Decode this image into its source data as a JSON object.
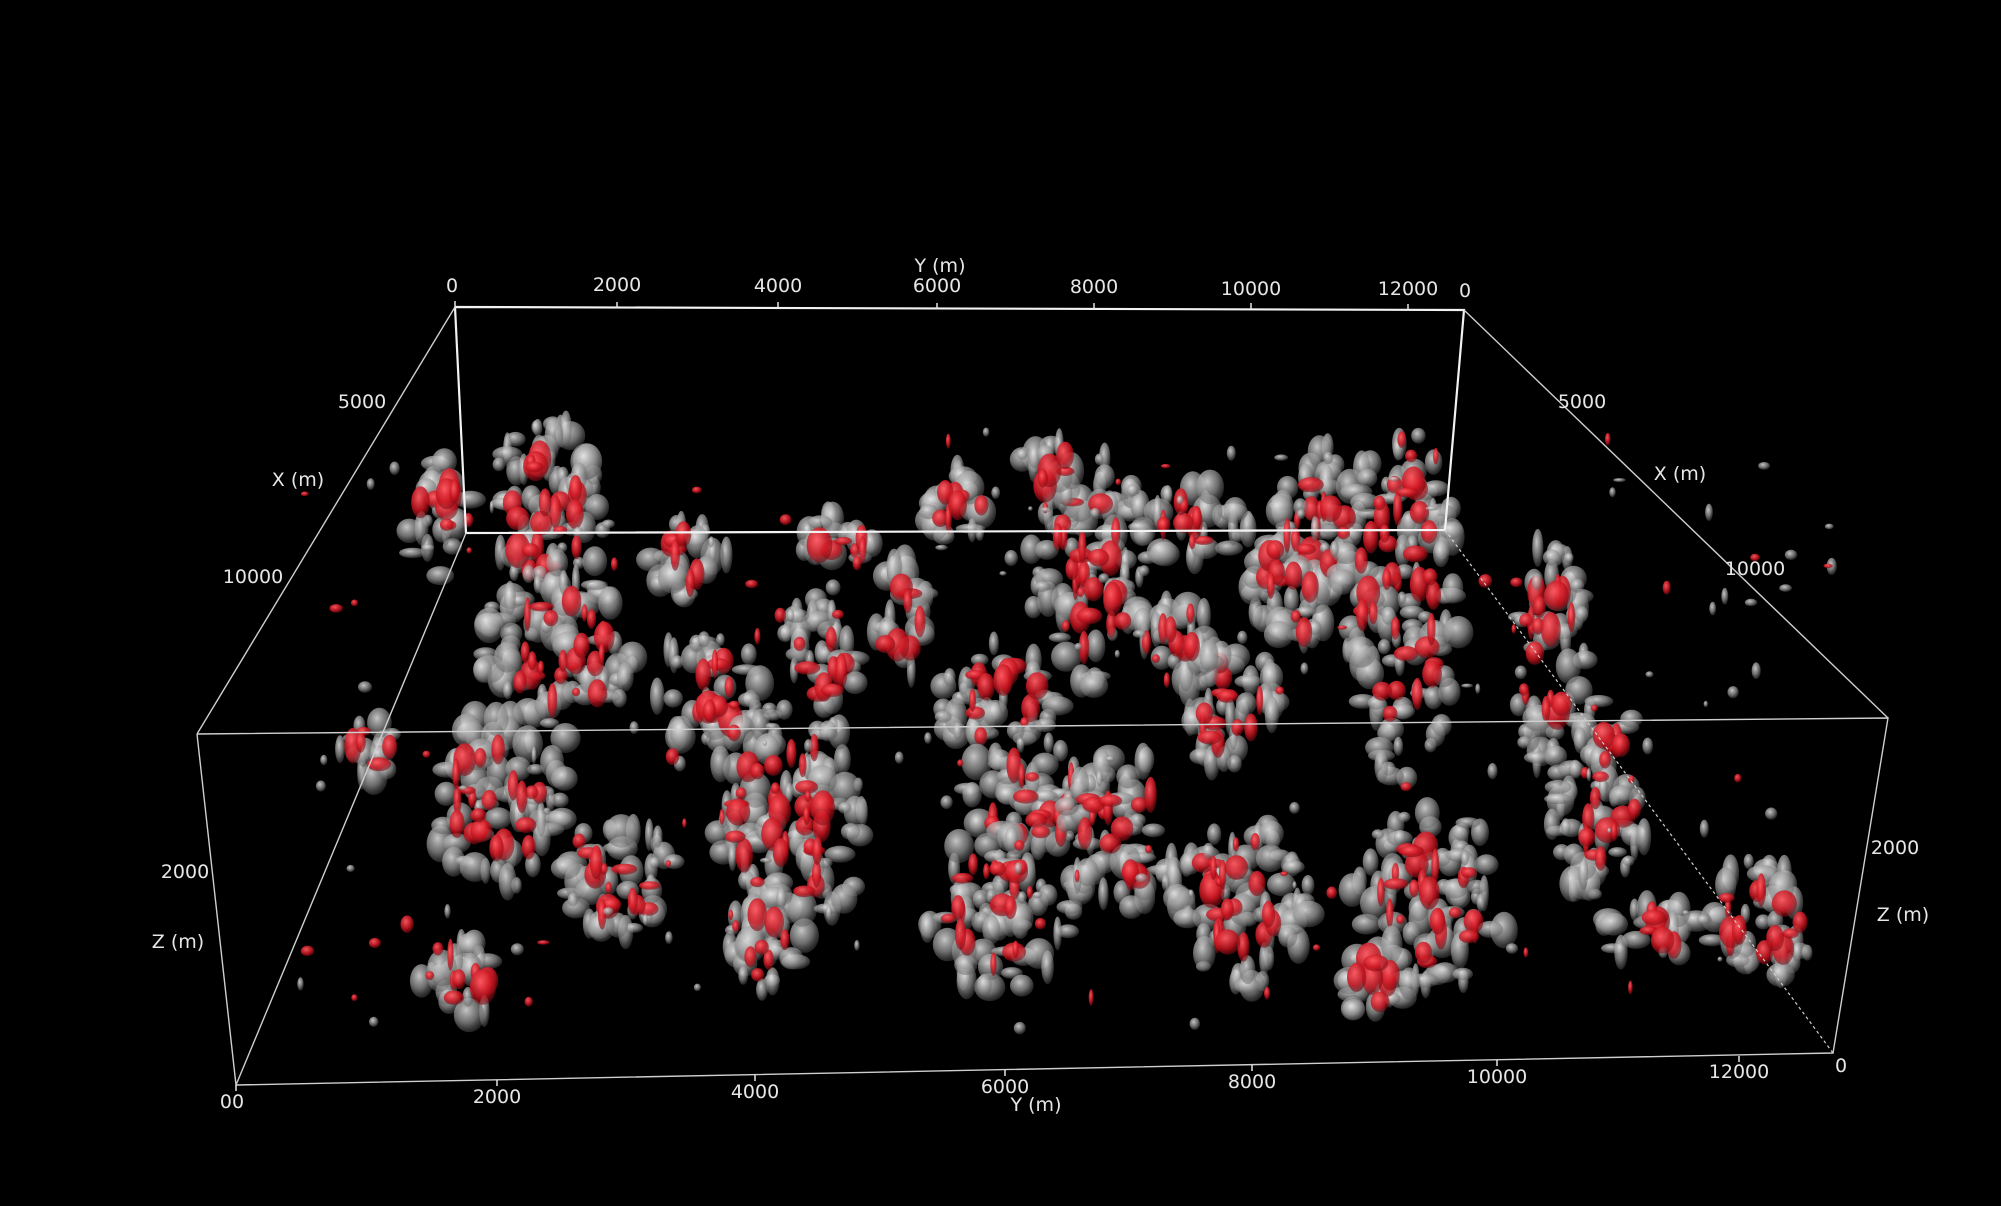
{
  "scene": {
    "background_color": "#000000",
    "isosurface_colors": {
      "gray": "#bdbdbd",
      "red": "#d8242f"
    }
  },
  "axes": {
    "y_top": {
      "title": "Y (m)",
      "ticks": [
        "0",
        "2000",
        "4000",
        "6000",
        "8000",
        "10000",
        "12000"
      ],
      "end_label": "0"
    },
    "y_bottom": {
      "title": "Y (m)",
      "ticks": [
        "00",
        "2000",
        "4000",
        "6000",
        "8000",
        "10000",
        "12000"
      ],
      "end_label": "0"
    },
    "x_left": {
      "title": "X (m)",
      "ticks": [
        "5000",
        "10000"
      ]
    },
    "x_right": {
      "title": "X (m)",
      "ticks": [
        "5000",
        "10000"
      ]
    },
    "z_left": {
      "title": "Z (m)",
      "ticks": [
        "2000"
      ]
    },
    "z_right": {
      "title": "Z (m)",
      "ticks": [
        "2000"
      ]
    }
  }
}
